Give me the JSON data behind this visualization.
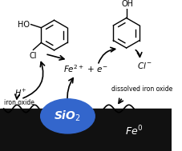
{
  "bg_color": "#ffffff",
  "fe_bar_color": "#111111",
  "sio2_color": "#3366cc",
  "sio2_label": "SiO$_2$",
  "sio2_label_color": "#ffffff",
  "fe0_label": "Fe$^0$",
  "fe0_label_color": "#ffffff",
  "fe2plus_label": "Fe$^{2+}$ + e$^{-}$",
  "hplus_label": "H$^+$",
  "cl_label": "Cl",
  "cl_minus_label": "Cl$^-$",
  "iron_oxide_label": "iron oxide",
  "dissolved_iron_oxide_label": "dissolved iron oxide",
  "ho_label": "HO",
  "oh_label": "OH"
}
